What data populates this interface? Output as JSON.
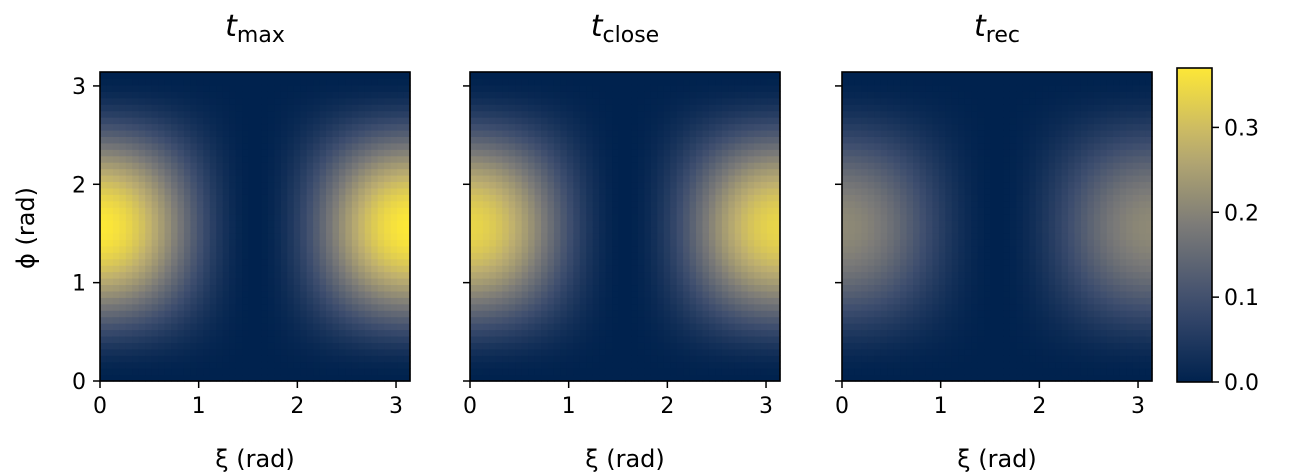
{
  "chart_data": {
    "type": "heatmap",
    "colormap": "cividis",
    "xlim": [
      0,
      3.14159
    ],
    "ylim": [
      0,
      3.14159
    ],
    "xticks": [
      0,
      1,
      2,
      3
    ],
    "yticks": [
      0,
      1,
      2,
      3
    ],
    "xlabel": "ξ (rad)",
    "ylabel": "ϕ (rad)",
    "grid": false,
    "model": "value = peak · sin²(ϕ) · cos²(ξ)",
    "panels": [
      {
        "title_main": "t",
        "title_sub": "max",
        "peak": 0.37
      },
      {
        "title_main": "t",
        "title_sub": "close",
        "peak": 0.34
      },
      {
        "title_main": "t",
        "title_sub": "rec",
        "peak": 0.21
      }
    ],
    "colorbar": {
      "range": [
        0.0,
        0.37
      ],
      "ticks": [
        "0.0",
        "0.1",
        "0.2",
        "0.3"
      ],
      "tick_values": [
        0.0,
        0.1,
        0.2,
        0.3
      ]
    }
  }
}
